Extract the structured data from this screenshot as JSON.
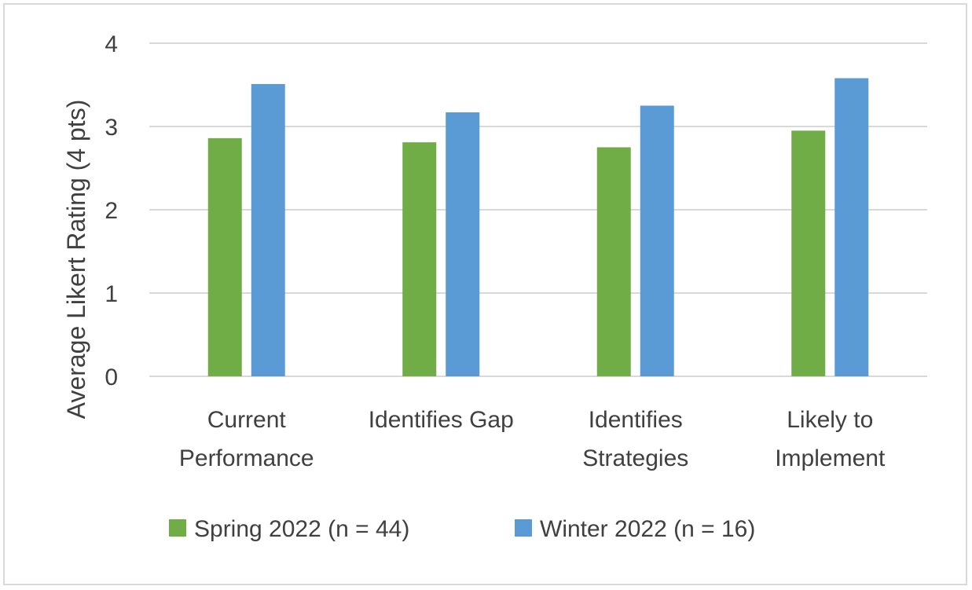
{
  "chart_data": {
    "type": "bar",
    "title": "",
    "xlabel": "",
    "ylabel": "Average Likert Rating (4 pts)",
    "ylim": [
      0,
      4
    ],
    "yticks": [
      0,
      1,
      2,
      3,
      4
    ],
    "grid": true,
    "legend_position": "bottom",
    "categories": [
      [
        "Current",
        "Performance"
      ],
      [
        "Identifies Gap"
      ],
      [
        "Identifies",
        "Strategies"
      ],
      [
        "Likely to",
        "Implement"
      ]
    ],
    "series": [
      {
        "name": "Spring 2022 (n = 44)",
        "color": "#70ad47",
        "values": [
          2.86,
          2.81,
          2.75,
          2.95
        ]
      },
      {
        "name": "Winter 2022 (n = 16)",
        "color": "#5b9bd5",
        "values": [
          3.51,
          3.17,
          3.25,
          3.58
        ]
      }
    ]
  }
}
